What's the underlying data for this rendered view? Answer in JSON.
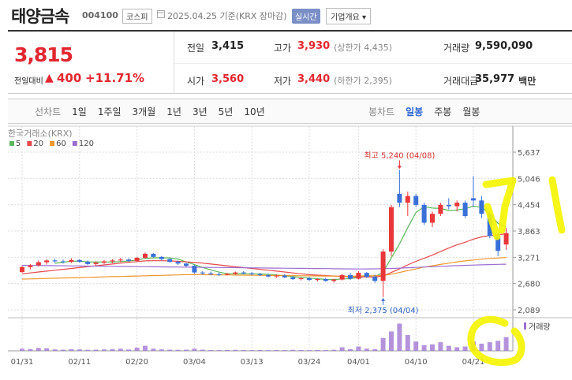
{
  "header": {
    "title": "태양금속",
    "code": "004100",
    "market": "코스피",
    "date": "2025.04.25",
    "basis": "기준(KRX 장마감)",
    "realtime": "실시간",
    "company_button": "기업개요 ▾"
  },
  "quote": {
    "price": "3,815",
    "change_label": "전일대비",
    "change_arrow": "▲",
    "change": "400",
    "change_pct": "+11.71%",
    "items": [
      {
        "label": "전일",
        "value": "3,415"
      },
      {
        "label": "고가",
        "value": "3,930",
        "sub": "(상한가 4,435)"
      },
      {
        "label": "거래량",
        "value": "9,590,090"
      },
      {
        "label": "시가",
        "value": "3,560"
      },
      {
        "label": "저가",
        "value": "3,440",
        "sub": "(하한가 2,395)"
      },
      {
        "label": "거래대금",
        "value": "35,977",
        "unit": "백만"
      }
    ]
  },
  "tabs": {
    "line": "선차트",
    "line_periods": [
      "1일",
      "1주일",
      "3개월",
      "1년",
      "3년",
      "5년",
      "10년"
    ],
    "candle": "봉차트",
    "candle_periods": [
      "일봉",
      "주봉",
      "월봉"
    ],
    "active_candle_period": 0
  },
  "chart_data": {
    "type": "candlestick",
    "source": "한국거래소(KRX)",
    "categories": [
      "01/31",
      null,
      null,
      null,
      null,
      null,
      null,
      "02/11",
      null,
      null,
      null,
      null,
      null,
      null,
      "02/20",
      null,
      null,
      null,
      null,
      null,
      null,
      "03/04",
      null,
      null,
      null,
      null,
      null,
      null,
      "03/13",
      null,
      null,
      null,
      null,
      null,
      null,
      "03/24",
      null,
      null,
      null,
      null,
      null,
      "04/01",
      null,
      null,
      null,
      null,
      null,
      null,
      "04/10",
      null,
      null,
      null,
      null,
      null,
      null,
      "04/21",
      null,
      null,
      null,
      null
    ],
    "ohlc": [
      [
        2940,
        3080,
        2920,
        3050
      ],
      [
        3050,
        3120,
        3000,
        3090
      ],
      [
        3090,
        3200,
        3060,
        3160
      ],
      [
        3160,
        3230,
        3110,
        3200
      ],
      [
        3200,
        3240,
        3150,
        3180
      ],
      [
        3180,
        3220,
        3130,
        3170
      ],
      [
        3170,
        3250,
        3140,
        3210
      ],
      [
        3210,
        3230,
        3150,
        3170
      ],
      [
        3170,
        3200,
        3100,
        3120
      ],
      [
        3120,
        3180,
        3090,
        3150
      ],
      [
        3150,
        3210,
        3120,
        3180
      ],
      [
        3180,
        3230,
        3140,
        3200
      ],
      [
        3200,
        3260,
        3160,
        3220
      ],
      [
        3220,
        3250,
        3170,
        3190
      ],
      [
        3190,
        3280,
        3170,
        3260
      ],
      [
        3260,
        3380,
        3240,
        3350
      ],
      [
        3350,
        3370,
        3260,
        3280
      ],
      [
        3280,
        3300,
        3200,
        3230
      ],
      [
        3230,
        3250,
        3150,
        3170
      ],
      [
        3170,
        3200,
        3100,
        3130
      ],
      [
        3130,
        3150,
        3050,
        3080
      ],
      [
        3080,
        3100,
        2900,
        2930
      ],
      [
        2930,
        2960,
        2880,
        2910
      ],
      [
        2910,
        2950,
        2870,
        2890
      ],
      [
        2890,
        2930,
        2850,
        2880
      ],
      [
        2880,
        2920,
        2860,
        2900
      ],
      [
        2900,
        2950,
        2880,
        2930
      ],
      [
        2930,
        2960,
        2890,
        2910
      ],
      [
        2910,
        2940,
        2870,
        2890
      ],
      [
        2890,
        2920,
        2850,
        2870
      ],
      [
        2870,
        2900,
        2820,
        2840
      ],
      [
        2840,
        2880,
        2810,
        2860
      ],
      [
        2860,
        2890,
        2800,
        2820
      ],
      [
        2820,
        2850,
        2760,
        2780
      ],
      [
        2780,
        2820,
        2750,
        2800
      ],
      [
        2800,
        2830,
        2740,
        2760
      ],
      [
        2760,
        2800,
        2730,
        2780
      ],
      [
        2780,
        2810,
        2720,
        2740
      ],
      [
        2740,
        2790,
        2700,
        2770
      ],
      [
        2770,
        2900,
        2750,
        2870
      ],
      [
        2870,
        2920,
        2760,
        2790
      ],
      [
        2790,
        2960,
        2770,
        2920
      ],
      [
        2920,
        2940,
        2800,
        2830
      ],
      [
        2830,
        2880,
        2700,
        2740
      ],
      [
        2740,
        3450,
        2375,
        3400
      ],
      [
        3400,
        4450,
        3300,
        4400
      ],
      [
        4700,
        5240,
        4400,
        4500
      ],
      [
        4500,
        4750,
        4200,
        4650
      ],
      [
        4650,
        4700,
        4400,
        4450
      ],
      [
        4450,
        4500,
        4000,
        4050
      ],
      [
        4050,
        4300,
        3950,
        4250
      ],
      [
        4250,
        4500,
        4200,
        4450
      ],
      [
        4450,
        4600,
        4350,
        4420
      ],
      [
        4420,
        4550,
        4300,
        4500
      ],
      [
        4500,
        4550,
        4150,
        4200
      ],
      [
        4600,
        5100,
        4400,
        4550
      ],
      [
        4550,
        4650,
        4150,
        4250
      ],
      [
        4250,
        4300,
        3700,
        3750
      ],
      [
        3750,
        3800,
        3300,
        3415
      ],
      [
        3560,
        3930,
        3440,
        3815
      ]
    ],
    "up_color": "#e8363a",
    "down_color": "#3a6fd8",
    "ylim": [
      2089,
      5637
    ],
    "yticks": [
      {
        "value": 5637,
        "label": "5,637"
      },
      {
        "value": 5046,
        "label": "5,046"
      },
      {
        "value": 4454,
        "label": "4,454"
      },
      {
        "value": 3863,
        "label": "3,863"
      },
      {
        "value": 3271,
        "label": "3,271"
      },
      {
        "value": 2680,
        "label": "2,680"
      },
      {
        "value": 2089,
        "label": "2,089"
      }
    ],
    "grid": true,
    "ma": [
      {
        "name": "5",
        "color": "#5cb85c",
        "values": [
          null,
          null,
          null,
          null,
          3136,
          3160,
          3184,
          3186,
          3170,
          3164,
          3166,
          3164,
          3174,
          3188,
          3210,
          3244,
          3260,
          3262,
          3258,
          3232,
          3168,
          3108,
          3044,
          2988,
          2938,
          2902,
          2902,
          2902,
          2900,
          2900,
          2888,
          2874,
          2856,
          2834,
          2820,
          2804,
          2788,
          2772,
          2770,
          2784,
          2790,
          2818,
          2836,
          2830,
          2936,
          3258,
          3574,
          3938,
          4280,
          4410,
          4380,
          4370,
          4324,
          4334,
          4364,
          4424,
          4394,
          4250,
          4033,
          3956
        ]
      },
      {
        "name": "20",
        "color": "#e8484a",
        "values": [
          2900,
          2920,
          2940,
          2960,
          2980,
          3000,
          3020,
          3040,
          3060,
          3080,
          3100,
          3120,
          3140,
          3160,
          3175,
          3190,
          3195,
          3195,
          3190,
          3180,
          3170,
          3155,
          3140,
          3120,
          3100,
          3080,
          3060,
          3040,
          3020,
          3000,
          2980,
          2960,
          2940,
          2920,
          2900,
          2880,
          2870,
          2860,
          2850,
          2840,
          2830,
          2830,
          2830,
          2825,
          2855,
          2930,
          3010,
          3100,
          3180,
          3250,
          3320,
          3400,
          3480,
          3550,
          3610,
          3680,
          3730,
          3760,
          3780,
          3800
        ]
      },
      {
        "name": "60",
        "color": "#f0962e",
        "values": [
          2780,
          2785,
          2790,
          2795,
          2800,
          2805,
          2810,
          2815,
          2820,
          2825,
          2830,
          2835,
          2840,
          2845,
          2850,
          2855,
          2860,
          2865,
          2870,
          2875,
          2880,
          2880,
          2880,
          2878,
          2876,
          2874,
          2872,
          2870,
          2868,
          2866,
          2864,
          2862,
          2860,
          2858,
          2856,
          2854,
          2852,
          2850,
          2848,
          2846,
          2844,
          2850,
          2855,
          2858,
          2862,
          2890,
          2930,
          2970,
          3010,
          3050,
          3080,
          3110,
          3140,
          3170,
          3190,
          3210,
          3230,
          3245,
          3255,
          3265
        ]
      },
      {
        "name": "120",
        "color": "#9b6fd0",
        "values": [
          3090,
          3088,
          3086,
          3084,
          3082,
          3080,
          3078,
          3076,
          3074,
          3072,
          3070,
          3068,
          3066,
          3064,
          3062,
          3060,
          3058,
          3056,
          3054,
          3052,
          3050,
          3048,
          3046,
          3044,
          3042,
          3040,
          3038,
          3036,
          3034,
          3032,
          3030,
          3028,
          3026,
          3024,
          3022,
          3020,
          3018,
          3016,
          3014,
          3012,
          3010,
          3008,
          3010,
          3012,
          3015,
          3020,
          3028,
          3036,
          3044,
          3052,
          3060,
          3068,
          3076,
          3084,
          3090,
          3096,
          3102,
          3108,
          3112,
          3116
        ]
      }
    ],
    "volume": {
      "label": "거래량",
      "color": "#9b6fd0",
      "ylim": [
        0,
        22000000
      ],
      "values": [
        1500000,
        1200000,
        2000000,
        1800000,
        1000000,
        800000,
        1200000,
        1000000,
        700000,
        800000,
        1000000,
        1200000,
        1500000,
        900000,
        2200000,
        3500000,
        1500000,
        1000000,
        800000,
        700000,
        800000,
        1500000,
        800000,
        600000,
        500000,
        600000,
        700000,
        600000,
        500000,
        600000,
        500000,
        600000,
        500000,
        700000,
        600000,
        500000,
        600000,
        500000,
        700000,
        2500000,
        1200000,
        3000000,
        1500000,
        1200000,
        9000000,
        13500000,
        19000000,
        11000000,
        6500000,
        4000000,
        4500000,
        6000000,
        3500000,
        2500000,
        3000000,
        6500000,
        5000000,
        6000000,
        7000000,
        9590090
      ]
    },
    "annotations": [
      {
        "label": "최고 5,240 (04/08)",
        "value": 5240,
        "kind": "high"
      },
      {
        "label": "최저 2,375 (04/04)",
        "value": 2375,
        "kind": "low"
      }
    ]
  }
}
